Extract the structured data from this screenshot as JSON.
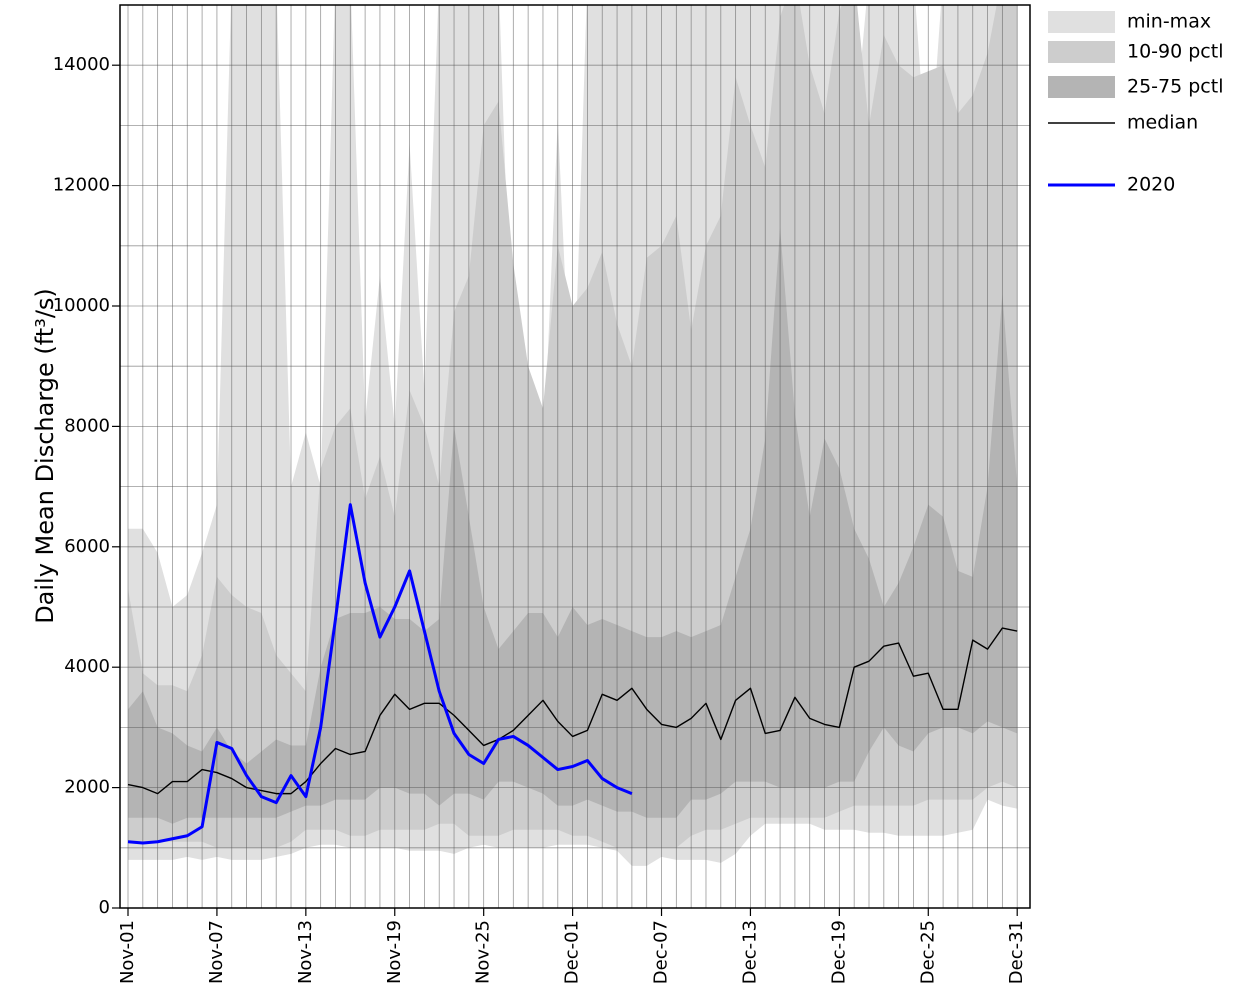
{
  "chart_data": {
    "type": "band-line",
    "y_label": "Daily Mean Discharge (ft³/s)",
    "categories": [
      "Nov-01",
      null,
      null,
      null,
      null,
      null,
      "Nov-07",
      null,
      null,
      null,
      null,
      null,
      "Nov-13",
      null,
      null,
      null,
      null,
      null,
      "Nov-19",
      null,
      null,
      null,
      null,
      null,
      "Nov-25",
      null,
      null,
      null,
      null,
      null,
      "Dec-01",
      null,
      null,
      null,
      null,
      null,
      "Dec-07",
      null,
      null,
      null,
      null,
      null,
      "Dec-13",
      null,
      null,
      null,
      null,
      null,
      "Dec-19",
      null,
      null,
      null,
      null,
      null,
      "Dec-25",
      null,
      null,
      null,
      null,
      null,
      "Dec-31"
    ],
    "ylim": [
      0,
      15000
    ],
    "yticks": [
      0,
      2000,
      4000,
      6000,
      8000,
      10000,
      12000,
      14000
    ],
    "yminor": [
      1000,
      3000,
      5000,
      7000,
      9000,
      11000,
      13000
    ],
    "grid": true,
    "legend": "outside-right",
    "bands": [
      {
        "name": "min-max",
        "color": "#e0e0e0",
        "lower": [
          800,
          800,
          800,
          800,
          850,
          800,
          850,
          800,
          800,
          800,
          850,
          900,
          1000,
          1050,
          1050,
          1000,
          1000,
          1000,
          1000,
          950,
          950,
          950,
          900,
          1000,
          1050,
          1000,
          1000,
          1000,
          1000,
          1050,
          1050,
          1050,
          1000,
          950,
          700,
          700,
          850,
          800,
          800,
          800,
          750,
          900,
          1200,
          1400,
          1400,
          1400,
          1400,
          1300,
          1300,
          1300,
          1250,
          1250,
          1200,
          1200,
          1200,
          1200,
          1250,
          1300,
          1800,
          1700,
          1650
        ],
        "upper": [
          6300,
          6300,
          5900,
          5000,
          5200,
          5900,
          6700,
          15500,
          15500,
          15500,
          15500,
          7000,
          7900,
          7000,
          15500,
          15500,
          8100,
          10500,
          8000,
          12700,
          8600,
          15500,
          15500,
          15500,
          15500,
          15500,
          8300,
          8700,
          7300,
          13100,
          7700,
          15500,
          15500,
          15500,
          15500,
          15500,
          15500,
          15500,
          15500,
          15500,
          15500,
          15500,
          15500,
          15500,
          15500,
          15500,
          15500,
          15500,
          15500,
          12800,
          15500,
          15500,
          15500,
          15500,
          12000,
          15500,
          15500,
          15500,
          15500,
          15500,
          15500
        ]
      },
      {
        "name": "10-90 pctl",
        "color": "#cdcdcd",
        "lower": [
          1100,
          1100,
          1100,
          1100,
          1100,
          1100,
          1000,
          1000,
          1000,
          1000,
          1000,
          1100,
          1300,
          1300,
          1300,
          1200,
          1200,
          1300,
          1300,
          1300,
          1300,
          1400,
          1400,
          1200,
          1200,
          1200,
          1300,
          1300,
          1300,
          1300,
          1200,
          1200,
          1100,
          1000,
          1000,
          1000,
          1000,
          1000,
          1200,
          1300,
          1300,
          1400,
          1500,
          1500,
          1500,
          1500,
          1500,
          1500,
          1600,
          1700,
          1700,
          1700,
          1700,
          1700,
          1800,
          1800,
          1800,
          1800,
          2000,
          2100,
          2000
        ],
        "upper": [
          5300,
          3900,
          3700,
          3700,
          3600,
          4200,
          5500,
          5200,
          5000,
          4900,
          4200,
          3900,
          3600,
          7300,
          8000,
          8300,
          6800,
          7500,
          6500,
          8600,
          8000,
          7000,
          9900,
          10500,
          13000,
          13400,
          10700,
          9000,
          8300,
          11000,
          10000,
          10300,
          10900,
          9700,
          9000,
          10800,
          11000,
          11500,
          9600,
          11000,
          11500,
          13800,
          13000,
          12300,
          14800,
          15500,
          14000,
          13200,
          14900,
          15500,
          13000,
          14500,
          14000,
          13800,
          13900,
          14000,
          13200,
          13500,
          14200,
          15500,
          15500
        ]
      },
      {
        "name": "25-75 pctl",
        "color": "#b4b4b4",
        "lower": [
          1500,
          1500,
          1500,
          1400,
          1500,
          1500,
          1500,
          1500,
          1500,
          1500,
          1500,
          1600,
          1700,
          1700,
          1800,
          1800,
          1800,
          2000,
          2000,
          1900,
          1900,
          1700,
          1900,
          1900,
          1800,
          2100,
          2100,
          2000,
          1900,
          1700,
          1700,
          1800,
          1700,
          1600,
          1600,
          1500,
          1500,
          1500,
          1800,
          1800,
          1900,
          2100,
          2100,
          2100,
          2000,
          2000,
          2000,
          2000,
          2100,
          2100,
          2600,
          3000,
          2700,
          2600,
          2900,
          3000,
          3000,
          2900,
          3100,
          3000,
          2900
        ],
        "upper": [
          3300,
          3600,
          3000,
          2900,
          2700,
          2600,
          3000,
          2600,
          2400,
          2600,
          2800,
          2700,
          2700,
          4000,
          4800,
          4900,
          4900,
          5000,
          4800,
          4800,
          4600,
          4800,
          8000,
          6500,
          5000,
          4300,
          4600,
          4900,
          4900,
          4500,
          5000,
          4700,
          4800,
          4700,
          4600,
          4500,
          4500,
          4600,
          4500,
          4600,
          4700,
          5500,
          6300,
          7800,
          11300,
          8200,
          6500,
          7800,
          7300,
          6300,
          5800,
          5000,
          5400,
          6000,
          6700,
          6500,
          5600,
          5500,
          7000,
          10200,
          7000
        ]
      }
    ],
    "series": [
      {
        "name": "median",
        "color": "#000000",
        "values": [
          2050,
          2000,
          1900,
          2100,
          2100,
          2300,
          2250,
          2150,
          2000,
          1950,
          1900,
          1900,
          2100,
          2400,
          2650,
          2550,
          2600,
          3200,
          3550,
          3300,
          3400,
          3400,
          3200,
          2950,
          2700,
          2800,
          2950,
          3200,
          3450,
          3100,
          2850,
          2950,
          3550,
          3450,
          3650,
          3300,
          3050,
          3000,
          3150,
          3400,
          2800,
          3450,
          3650,
          2900,
          2950,
          3500,
          3150,
          3050,
          3000,
          4000,
          4100,
          4350,
          4400,
          3850,
          3900,
          3300,
          3300,
          4450,
          4300,
          4650,
          4600
        ]
      },
      {
        "name": "2020",
        "color": "#0000ff",
        "values": [
          1100,
          1080,
          1100,
          1150,
          1200,
          1350,
          2750,
          2650,
          2200,
          1850,
          1750,
          2200,
          1850,
          3000,
          4800,
          6700,
          5400,
          4500,
          5000,
          5600,
          4600,
          3600,
          2900,
          2550,
          2400,
          2800,
          2850,
          2700,
          2500,
          2300,
          2350,
          2450,
          2150,
          2000,
          1900,
          null,
          null,
          null,
          null,
          null,
          null,
          null,
          null,
          null,
          null,
          null,
          null,
          null,
          null,
          null,
          null,
          null,
          null,
          null,
          null,
          null,
          null,
          null,
          null,
          null,
          null
        ]
      }
    ]
  }
}
